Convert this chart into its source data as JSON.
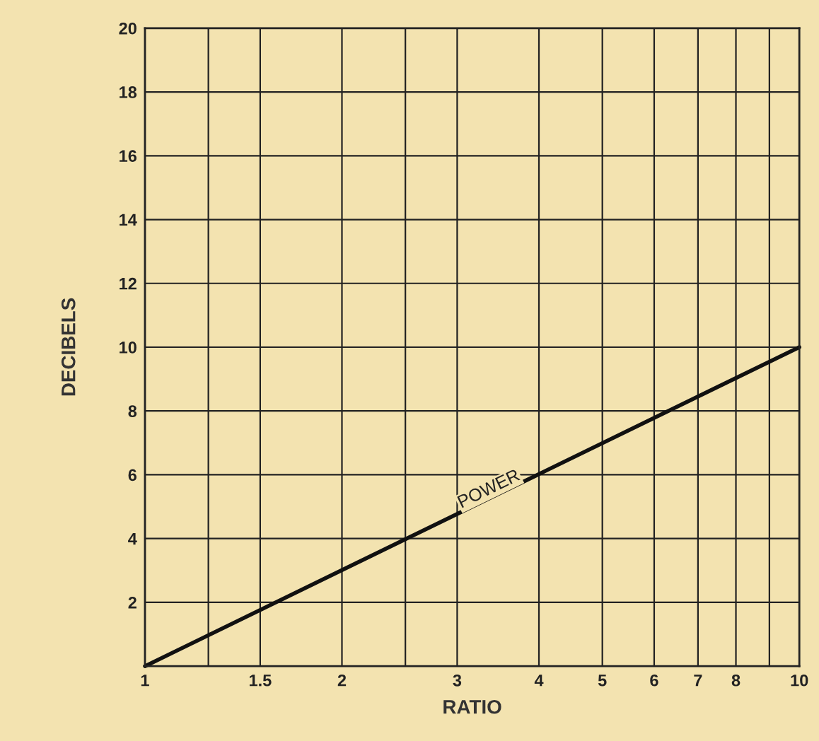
{
  "chart_data": {
    "type": "line",
    "xlabel": "RATIO",
    "ylabel": "DECIBELS",
    "log": "x",
    "grid": true,
    "marker": "none",
    "line_style": "solid",
    "x": [
      1,
      10
    ],
    "series": [
      {
        "color": "#111111",
        "values": [
          0,
          10
        ]
      }
    ],
    "xlim": [
      1,
      10
    ],
    "ylim": [
      0,
      20
    ],
    "xticks": [
      1,
      {
        "value": 1.25,
        "label": null
      },
      1.5,
      2,
      {
        "value": 2.5,
        "label": null
      },
      3,
      4,
      5,
      6,
      7,
      8,
      {
        "value": 9,
        "label": null
      },
      10
    ],
    "yticks": [
      {
        "value": 0,
        "label": null
      },
      2,
      4,
      6,
      8,
      10,
      12,
      14,
      16,
      18,
      20
    ],
    "annotations": [
      {
        "text": "POWER",
        "x": 3.4,
        "y": 5.3
      }
    ]
  }
}
